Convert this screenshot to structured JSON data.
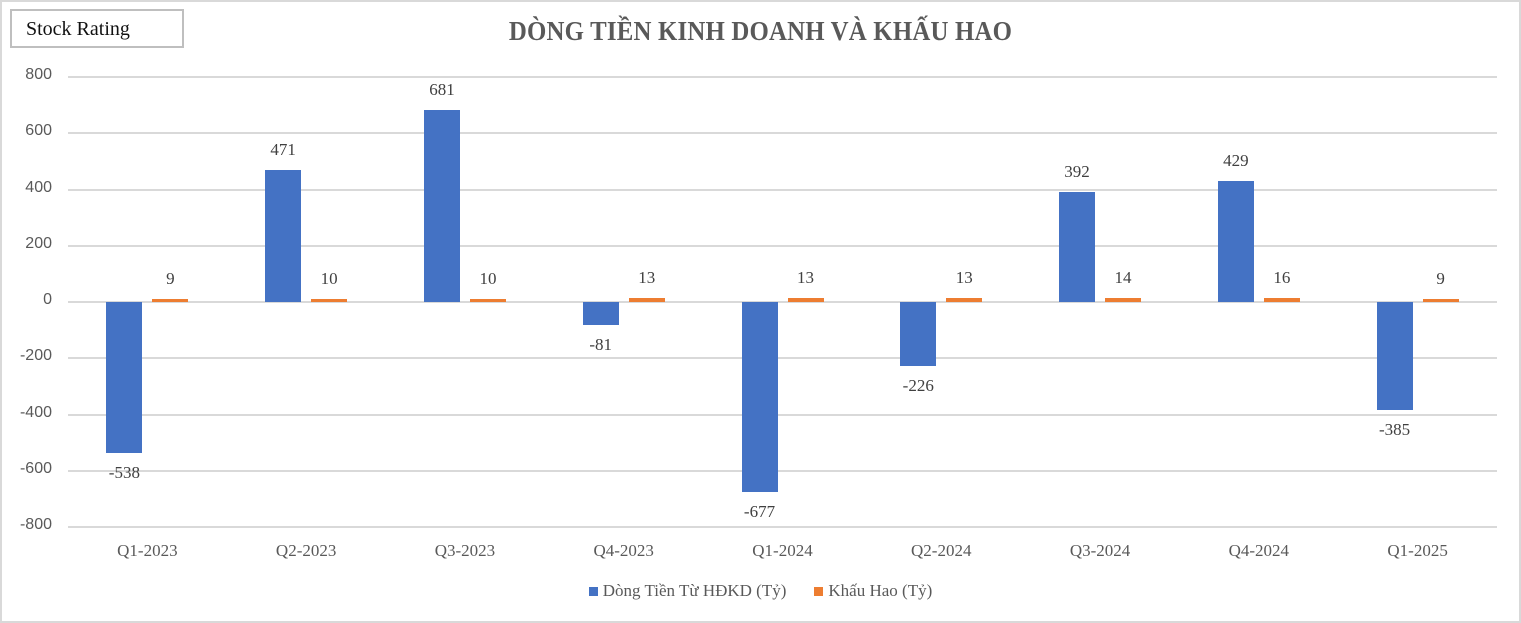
{
  "badge": {
    "label": "Stock Rating"
  },
  "chart_data": {
    "type": "bar",
    "title": "DÒNG TIỀN KINH DOANH VÀ KHẤU HAO",
    "xlabel": "",
    "ylabel": "",
    "ylim": [
      -800,
      800
    ],
    "yticks": [
      800,
      600,
      400,
      200,
      0,
      -200,
      -400,
      -600,
      -800
    ],
    "grid": true,
    "legend_position": "bottom",
    "categories": [
      "Q1-2023",
      "Q2-2023",
      "Q3-2023",
      "Q4-2023",
      "Q1-2024",
      "Q2-2024",
      "Q3-2024",
      "Q4-2024",
      "Q1-2025"
    ],
    "series": [
      {
        "name": "Dòng Tiền Từ HĐKD (Tỷ)",
        "color": "#4472c4",
        "values": [
          -538,
          471,
          681,
          -81,
          -677,
          -226,
          392,
          429,
          -385
        ]
      },
      {
        "name": "Khấu Hao (Tỷ)",
        "color": "#ed7d31",
        "values": [
          9,
          10,
          10,
          13,
          13,
          13,
          14,
          16,
          9
        ]
      }
    ]
  }
}
